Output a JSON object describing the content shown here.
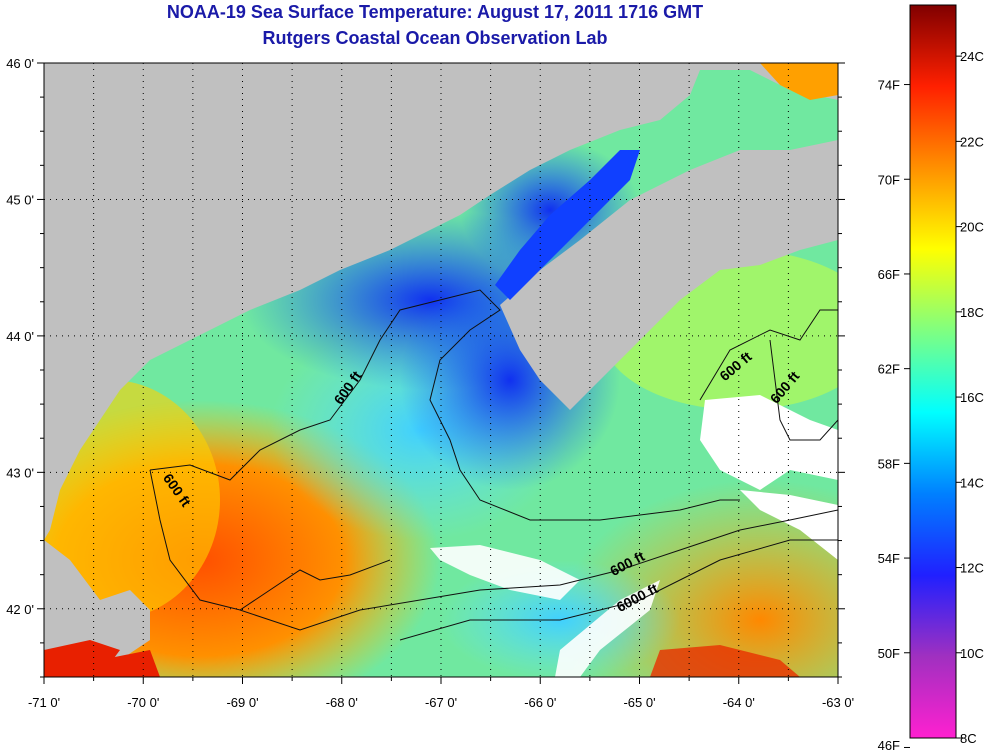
{
  "title": "NOAA-19 Sea Surface Temperature:  August 17, 2011 1716 GMT",
  "subtitle": "Rutgers Coastal Ocean Observation Lab",
  "lat_labels": [
    "46 0'",
    "45 0'",
    "44 0'",
    "43 0'",
    "42 0'"
  ],
  "lat_values": [
    46,
    45,
    44,
    43,
    42
  ],
  "lon_labels": [
    "-71 0'",
    "-70 0'",
    "-69 0'",
    "-68 0'",
    "-67 0'",
    "-66 0'",
    "-65 0'",
    "-64 0'",
    "-63 0'"
  ],
  "lon_values": [
    -71,
    -70,
    -69,
    -68,
    -67,
    -66,
    -65,
    -64,
    -63
  ],
  "lat_range": [
    41.5,
    46.0
  ],
  "lon_range": [
    -71.0,
    -63.0
  ],
  "contour_labels": [
    {
      "text": "600 ft",
      "lon": -67.9,
      "lat": 43.6,
      "angle": -55
    },
    {
      "text": "600 ft",
      "lon": -69.7,
      "lat": 42.85,
      "angle": 55
    },
    {
      "text": "600 ft",
      "lon": -64.0,
      "lat": 43.75,
      "angle": -40
    },
    {
      "text": "600 ft",
      "lon": -63.5,
      "lat": 43.6,
      "angle": -50
    },
    {
      "text": "600 ft",
      "lon": -65.1,
      "lat": 42.3,
      "angle": -28
    },
    {
      "text": "6000 ft",
      "lon": -65.0,
      "lat": 42.05,
      "angle": -28
    }
  ],
  "colorbar": {
    "fahrenheit_labels": [
      "74F",
      "70F",
      "66F",
      "62F",
      "58F",
      "54F",
      "50F",
      "46F"
    ],
    "fahrenheit_values": [
      74,
      70,
      66,
      62,
      58,
      54,
      50,
      46
    ],
    "celsius_labels": [
      "24C",
      "22C",
      "20C",
      "18C",
      "16C",
      "14C",
      "12C",
      "10C",
      "8C"
    ],
    "celsius_values": [
      24,
      22,
      20,
      18,
      16,
      14,
      12,
      10,
      8
    ],
    "range_c": [
      8,
      25.2
    ],
    "colors": [
      "#ff20d0",
      "#a030c0",
      "#2020ff",
      "#0080ff",
      "#00ffff",
      "#80ff80",
      "#ffff00",
      "#ff9000",
      "#ff2000",
      "#800000"
    ]
  },
  "colors": {
    "land": "#c0c0c0",
    "cloud": "#ffffff",
    "title": "#1a1aa8"
  }
}
